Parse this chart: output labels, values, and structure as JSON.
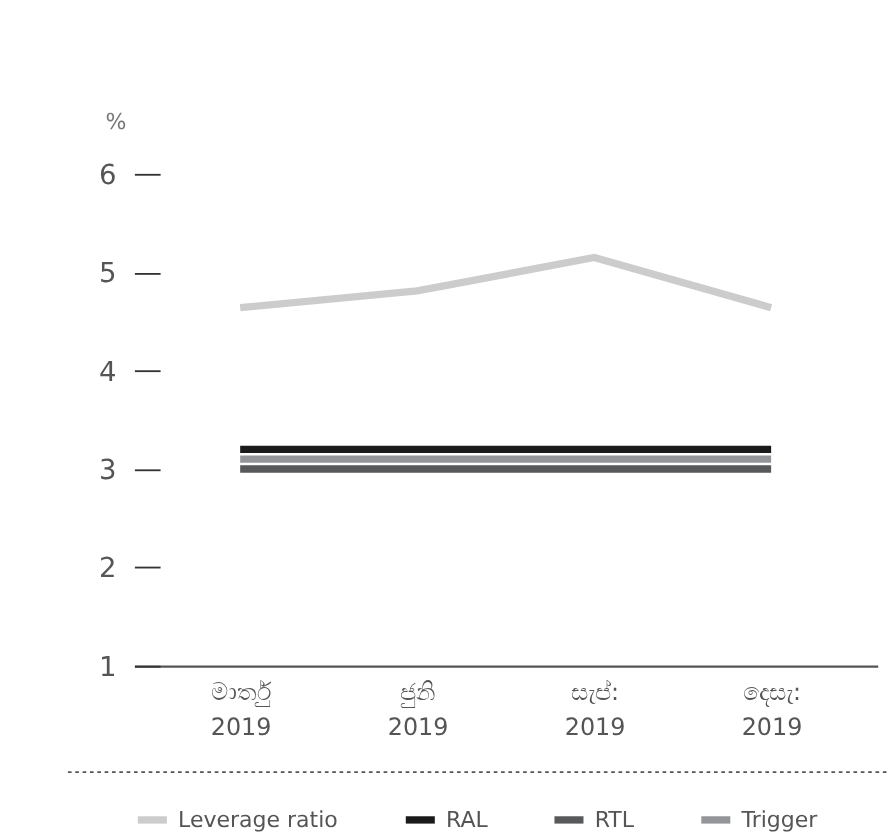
{
  "chart_data": {
    "type": "line",
    "ylabel": "%",
    "categories": [
      "මාර්තු\n2019",
      "ජුනි\n2019",
      "සැප්:\n2019",
      "දෙසැ:\n2019"
    ],
    "series": [
      {
        "name": "Leverage ratio",
        "color": "#cccccc",
        "values": [
          4.64,
          4.81,
          5.15,
          4.64
        ]
      },
      {
        "name": "RAL",
        "color": "#1a1a1a",
        "values": [
          3.2,
          3.2,
          3.2,
          3.2
        ]
      },
      {
        "name": "RTL",
        "color": "#58595b",
        "values": [
          3.0,
          3.0,
          3.0,
          3.0
        ]
      },
      {
        "name": "Trigger",
        "color": "#939598",
        "values": [
          3.1,
          3.1,
          3.1,
          3.1
        ]
      }
    ],
    "ylim": [
      1,
      6
    ],
    "yticks": [
      1,
      2,
      3,
      4,
      5,
      6
    ],
    "grid": false,
    "legend": "bottom",
    "marker": "none",
    "line_style": "solid"
  }
}
